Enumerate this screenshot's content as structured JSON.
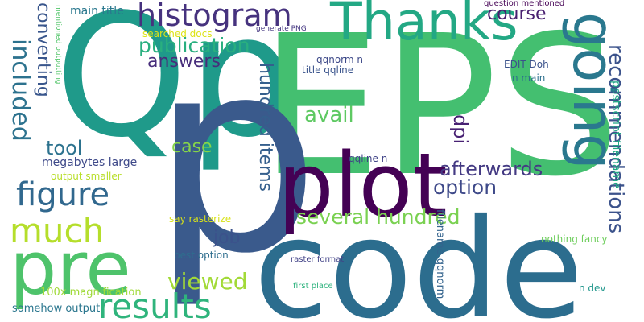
{
  "background": "#ffffff",
  "palette": [
    "#440154",
    "#3b528b",
    "#21918c",
    "#5ec962",
    "#fde725"
  ],
  "words": [
    {
      "text": "Qp",
      "color": "#1f9a8a"
    },
    {
      "text": "EPS",
      "color": "#44bf70"
    },
    {
      "text": "code",
      "color": "#2c6d8e"
    },
    {
      "text": "p",
      "color": "#3a5a8c"
    },
    {
      "text": "plot",
      "color": "#440154"
    },
    {
      "text": "going",
      "color": "#2a788e"
    },
    {
      "text": "Thanks",
      "color": "#23a884"
    },
    {
      "text": "pre",
      "color": "#4ec36b"
    },
    {
      "text": "histogram",
      "color": "#46327e"
    },
    {
      "text": "results",
      "color": "#2fb47c"
    },
    {
      "text": "figure",
      "color": "#31688e"
    },
    {
      "text": "much",
      "color": "#b5de2b"
    },
    {
      "text": "included",
      "color": "#2c728e"
    },
    {
      "text": "publication",
      "color": "#29af7f"
    },
    {
      "text": "recommendations",
      "color": "#3b528b"
    },
    {
      "text": "several hundred",
      "color": "#7ad151"
    },
    {
      "text": "hundred items",
      "color": "#355f8d"
    },
    {
      "text": "viewed",
      "color": "#a2da37"
    },
    {
      "text": "afterwards",
      "color": "#443a83"
    },
    {
      "text": "option",
      "color": "#3e4989"
    },
    {
      "text": "answers",
      "color": "#472d7b"
    },
    {
      "text": "avail",
      "color": "#5ec962"
    },
    {
      "text": "case",
      "color": "#86d549"
    },
    {
      "text": "course",
      "color": "#481f70"
    },
    {
      "text": "converting",
      "color": "#39568c"
    },
    {
      "text": "tool",
      "color": "#2c728e"
    },
    {
      "text": "job",
      "color": "#3b528b"
    },
    {
      "text": "dpi",
      "color": "#482173"
    },
    {
      "text": "postscript filename",
      "color": "#22a785"
    },
    {
      "text": "megabytes large",
      "color": "#3e4989"
    },
    {
      "text": "filename qqnorm",
      "color": "#33638d"
    },
    {
      "text": "main title",
      "color": "#2a788e"
    },
    {
      "text": "output smaller",
      "color": "#b8de29"
    },
    {
      "text": "100x magnification",
      "color": "#a0da39"
    },
    {
      "text": "somehow output",
      "color": "#2a768e"
    },
    {
      "text": "searched docs",
      "color": "#dde318"
    },
    {
      "text": "qqnorm n",
      "color": "#3e4a89"
    },
    {
      "text": "title qqline",
      "color": "#3a548c"
    },
    {
      "text": "EDIT Doh",
      "color": "#3b528b"
    },
    {
      "text": "n main",
      "color": "#2d708e"
    },
    {
      "text": "qqline n",
      "color": "#404387"
    },
    {
      "text": "nothing fancy",
      "color": "#6ccd5a"
    },
    {
      "text": "best option",
      "color": "#2e6e8e"
    },
    {
      "text": "say rasterize",
      "color": "#d8e219"
    },
    {
      "text": "raster format",
      "color": "#414287"
    },
    {
      "text": "first place",
      "color": "#2db27d"
    },
    {
      "text": "n dev",
      "color": "#1f968b"
    },
    {
      "text": "question mentioned",
      "color": "#440154"
    },
    {
      "text": "generate PNG",
      "color": "#453781"
    },
    {
      "text": "mentioned outputting",
      "color": "#52c569"
    }
  ]
}
